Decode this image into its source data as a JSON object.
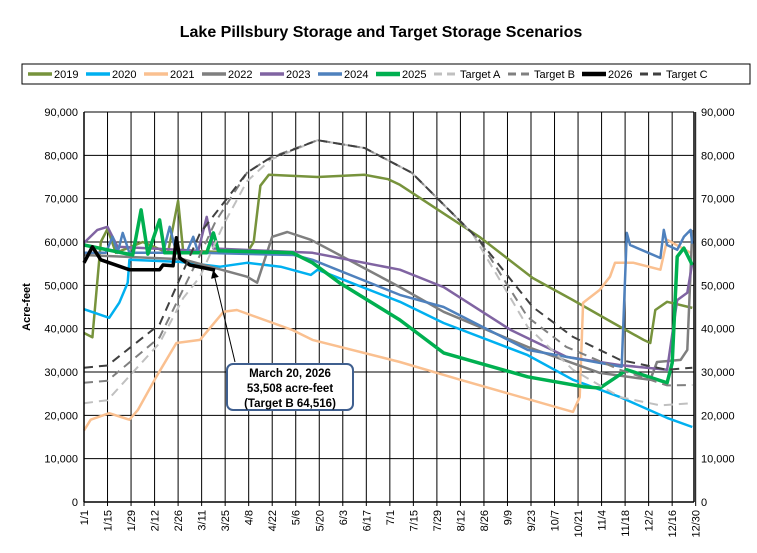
{
  "chart_data": {
    "type": "line",
    "title": "Lake Pillsbury Storage and Target Storage Scenarios",
    "ylabel": "Acre-feet",
    "xlabel": "",
    "ylim": [
      0,
      90000
    ],
    "yticks": [
      "0",
      "10,000",
      "20,000",
      "30,000",
      "40,000",
      "50,000",
      "60,000",
      "70,000",
      "80,000",
      "90,000"
    ],
    "xticks": [
      "1/1",
      "1/15",
      "1/29",
      "2/12",
      "2/26",
      "3/11",
      "3/25",
      "4/8",
      "4/22",
      "5/6",
      "5/20",
      "6/3",
      "6/17",
      "7/1",
      "7/15",
      "7/29",
      "8/12",
      "8/26",
      "9/9",
      "9/23",
      "10/7",
      "10/21",
      "11/4",
      "11/18",
      "12/2",
      "12/16",
      "12/30"
    ],
    "grid": true,
    "legend": "top",
    "annotation": {
      "line1": "March 20, 2026",
      "line2": "53,508 acre-feet",
      "line3": "(Target B 64,516)",
      "date": "3/20",
      "value": 53508
    },
    "series": [
      {
        "name": "2019",
        "color": "#77933C",
        "dash": false,
        "width": 2.5,
        "points": [
          [
            "1/1",
            39000
          ],
          [
            "1/6",
            38000
          ],
          [
            "1/11",
            60000
          ],
          [
            "1/15",
            63000
          ],
          [
            "1/20",
            57500
          ],
          [
            "2/5",
            60000
          ],
          [
            "2/20",
            57500
          ],
          [
            "2/26",
            69500
          ],
          [
            "3/1",
            58000
          ],
          [
            "4/8",
            57500
          ],
          [
            "4/12",
            60000
          ],
          [
            "4/16",
            73000
          ],
          [
            "4/21",
            75500
          ],
          [
            "5/20",
            75000
          ],
          [
            "6/17",
            75500
          ],
          [
            "7/1",
            74500
          ],
          [
            "7/8",
            73200
          ],
          [
            "8/25",
            61000
          ],
          [
            "9/25",
            51700
          ],
          [
            "10/19",
            46600
          ],
          [
            "11/12",
            41300
          ],
          [
            "11/30",
            37400
          ],
          [
            "12/4",
            36700
          ],
          [
            "12/7",
            44300
          ],
          [
            "12/14",
            46200
          ],
          [
            "12/29",
            44800
          ]
        ]
      },
      {
        "name": "2020",
        "color": "#00B0F0",
        "dash": false,
        "width": 2.5,
        "points": [
          [
            "1/1",
            44500
          ],
          [
            "1/16",
            42500
          ],
          [
            "1/22",
            46000
          ],
          [
            "1/27",
            50600
          ],
          [
            "1/28",
            55900
          ],
          [
            "2/27",
            55400
          ],
          [
            "3/23",
            54300
          ],
          [
            "4/8",
            55200
          ],
          [
            "4/28",
            54300
          ],
          [
            "5/16",
            52400
          ],
          [
            "5/20",
            53600
          ],
          [
            "7/8",
            46200
          ],
          [
            "8/3",
            41300
          ],
          [
            "9/22",
            33900
          ],
          [
            "10/19",
            28200
          ],
          [
            "11/16",
            24200
          ],
          [
            "12/14",
            19400
          ],
          [
            "12/29",
            17300
          ]
        ]
      },
      {
        "name": "2021",
        "color": "#FAC090",
        "dash": false,
        "width": 2.5,
        "points": [
          [
            "1/1",
            16500
          ],
          [
            "1/5",
            19000
          ],
          [
            "1/16",
            20500
          ],
          [
            "1/28",
            19000
          ],
          [
            "2/2",
            21200
          ],
          [
            "2/13",
            28900
          ],
          [
            "2/25",
            36700
          ],
          [
            "3/11",
            37400
          ],
          [
            "3/25",
            43900
          ],
          [
            "4/2",
            44300
          ],
          [
            "5/5",
            39700
          ],
          [
            "5/17",
            37400
          ],
          [
            "7/8",
            32300
          ],
          [
            "8/13",
            28200
          ],
          [
            "10/19",
            20800
          ],
          [
            "10/23",
            24200
          ],
          [
            "10/25",
            46000
          ],
          [
            "11/4",
            49000
          ],
          [
            "11/10",
            52000
          ],
          [
            "11/13",
            55200
          ],
          [
            "11/24",
            55200
          ],
          [
            "12/10",
            53600
          ],
          [
            "12/14",
            60500
          ],
          [
            "12/28",
            57500
          ]
        ]
      },
      {
        "name": "2022",
        "color": "#7F7F7F",
        "dash": false,
        "width": 2.5,
        "points": [
          [
            "1/1",
            57000
          ],
          [
            "3/1",
            56000
          ],
          [
            "4/8",
            52000
          ],
          [
            "4/14",
            50600
          ],
          [
            "4/23",
            61200
          ],
          [
            "5/2",
            62300
          ],
          [
            "5/16",
            60500
          ],
          [
            "7/8",
            49600
          ],
          [
            "8/3",
            43900
          ],
          [
            "9/22",
            35800
          ],
          [
            "11/4",
            29800
          ],
          [
            "12/4",
            28200
          ],
          [
            "12/8",
            32300
          ],
          [
            "12/22",
            32800
          ],
          [
            "12/26",
            35100
          ],
          [
            "12/29",
            62800
          ]
        ]
      },
      {
        "name": "2023",
        "color": "#8064A2",
        "dash": false,
        "width": 2.5,
        "points": [
          [
            "1/1",
            59800
          ],
          [
            "1/9",
            62800
          ],
          [
            "1/15",
            63500
          ],
          [
            "1/21",
            58900
          ],
          [
            "3/10",
            58000
          ],
          [
            "3/15",
            65800
          ],
          [
            "3/19",
            58500
          ],
          [
            "5/17",
            57500
          ],
          [
            "7/8",
            53600
          ],
          [
            "8/3",
            49600
          ],
          [
            "9/12",
            39700
          ],
          [
            "10/15",
            33500
          ],
          [
            "11/16",
            31600
          ],
          [
            "12/14",
            30500
          ],
          [
            "12/20",
            46600
          ],
          [
            "12/26",
            48300
          ],
          [
            "12/29",
            55200
          ]
        ]
      },
      {
        "name": "2024",
        "color": "#4F81BD",
        "dash": false,
        "width": 2.5,
        "points": [
          [
            "1/1",
            57500
          ],
          [
            "1/14",
            57500
          ],
          [
            "1/18",
            61200
          ],
          [
            "1/21",
            57500
          ],
          [
            "1/24",
            62100
          ],
          [
            "1/28",
            57500
          ],
          [
            "2/17",
            57500
          ],
          [
            "2/21",
            63500
          ],
          [
            "2/25",
            57500
          ],
          [
            "3/3",
            57500
          ],
          [
            "3/7",
            61200
          ],
          [
            "3/10",
            57500
          ],
          [
            "5/6",
            57000
          ],
          [
            "5/17",
            55900
          ],
          [
            "7/8",
            47800
          ],
          [
            "8/3",
            45000
          ],
          [
            "9/22",
            35100
          ],
          [
            "11/4",
            32100
          ],
          [
            "11/17",
            31200
          ],
          [
            "11/20",
            62100
          ],
          [
            "11/22",
            59300
          ],
          [
            "12/10",
            56300
          ],
          [
            "12/12",
            62800
          ],
          [
            "12/14",
            59300
          ],
          [
            "12/20",
            58200
          ],
          [
            "12/24",
            61200
          ],
          [
            "12/28",
            62800
          ],
          [
            "12/29",
            59600
          ]
        ]
      },
      {
        "name": "2025",
        "color": "#00B050",
        "dash": false,
        "width": 3.5,
        "points": [
          [
            "1/1",
            59300
          ],
          [
            "1/30",
            57000
          ],
          [
            "2/4",
            67400
          ],
          [
            "2/8",
            57200
          ],
          [
            "2/15",
            65100
          ],
          [
            "2/18",
            57500
          ],
          [
            "3/15",
            57500
          ],
          [
            "3/19",
            62100
          ],
          [
            "3/22",
            58000
          ],
          [
            "5/5",
            57500
          ],
          [
            "5/17",
            55200
          ],
          [
            "6/2",
            50600
          ],
          [
            "7/8",
            42000
          ],
          [
            "8/3",
            34400
          ],
          [
            "9/22",
            28900
          ],
          [
            "10/25",
            26600
          ],
          [
            "11/4",
            26300
          ],
          [
            "11/14",
            28900
          ],
          [
            "11/20",
            30500
          ],
          [
            "12/14",
            27500
          ],
          [
            "12/17",
            32100
          ],
          [
            "12/20",
            56600
          ],
          [
            "12/24",
            58600
          ],
          [
            "12/29",
            54700
          ]
        ]
      },
      {
        "name": "Target A",
        "color": "#C0C0C0",
        "dash": true,
        "width": 2,
        "points": [
          [
            "1/1",
            22800
          ],
          [
            "1/15",
            23500
          ],
          [
            "2/15",
            36700
          ],
          [
            "3/1",
            47000
          ],
          [
            "3/11",
            52000
          ],
          [
            "3/25",
            64000
          ],
          [
            "4/8",
            74000
          ],
          [
            "4/22",
            79000
          ],
          [
            "5/20",
            83500
          ],
          [
            "6/17",
            81700
          ],
          [
            "7/15",
            76000
          ],
          [
            "8/20",
            62000
          ],
          [
            "9/22",
            40400
          ],
          [
            "10/19",
            30500
          ],
          [
            "11/16",
            24200
          ],
          [
            "12/10",
            22300
          ],
          [
            "12/29",
            22800
          ]
        ]
      },
      {
        "name": "Target B",
        "color": "#808080",
        "dash": true,
        "width": 2,
        "points": [
          [
            "1/1",
            27500
          ],
          [
            "1/15",
            28000
          ],
          [
            "2/15",
            38000
          ],
          [
            "3/11",
            57000
          ],
          [
            "3/20",
            64516
          ],
          [
            "4/8",
            76000
          ],
          [
            "4/22",
            79500
          ],
          [
            "5/20",
            83500
          ],
          [
            "6/17",
            81700
          ],
          [
            "7/15",
            76000
          ],
          [
            "8/24",
            60500
          ],
          [
            "9/22",
            42700
          ],
          [
            "10/15",
            35800
          ],
          [
            "11/16",
            30500
          ],
          [
            "12/14",
            26900
          ],
          [
            "12/29",
            27000
          ]
        ]
      },
      {
        "name": "2026",
        "color": "#000000",
        "dash": false,
        "width": 3.5,
        "points": [
          [
            "1/1",
            55200
          ],
          [
            "1/6",
            58900
          ],
          [
            "1/11",
            55900
          ],
          [
            "1/28",
            53600
          ],
          [
            "2/15",
            53600
          ],
          [
            "2/17",
            54700
          ],
          [
            "2/23",
            54500
          ],
          [
            "2/25",
            61000
          ],
          [
            "2/27",
            56300
          ],
          [
            "3/5",
            54700
          ],
          [
            "3/20",
            53508
          ]
        ]
      },
      {
        "name": "Target C",
        "color": "#404040",
        "dash": true,
        "width": 2,
        "points": [
          [
            "1/1",
            31000
          ],
          [
            "1/15",
            31500
          ],
          [
            "2/15",
            41000
          ],
          [
            "3/11",
            62000
          ],
          [
            "4/8",
            76000
          ],
          [
            "4/20",
            79000
          ],
          [
            "5/20",
            83500
          ],
          [
            "6/17",
            81700
          ],
          [
            "7/15",
            76000
          ],
          [
            "8/24",
            60500
          ],
          [
            "9/25",
            45000
          ],
          [
            "10/19",
            38100
          ],
          [
            "11/16",
            32800
          ],
          [
            "12/14",
            30500
          ],
          [
            "12/29",
            31000
          ]
        ]
      }
    ]
  }
}
